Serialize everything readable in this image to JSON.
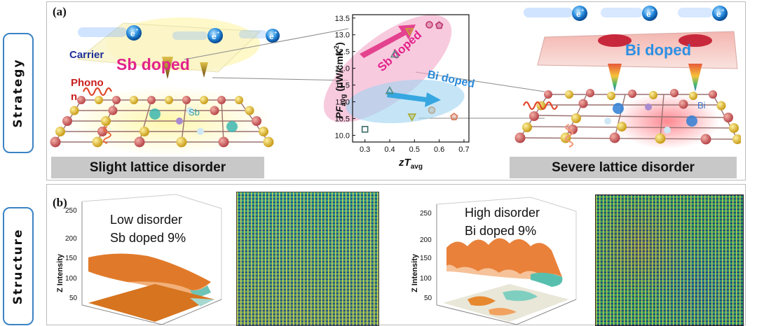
{
  "side_tabs": {
    "strategy": "Strategy",
    "structure": "Structure"
  },
  "panel_a": {
    "label": "(a)",
    "left": {
      "carrier": "Carrier",
      "dopant_title": "Sb doped",
      "phonon_line1": "Phono",
      "phonon_line2": "n",
      "atom_label": "Sb",
      "electron": "e",
      "electron_sup": "+",
      "banner": "Slight lattice disorder"
    },
    "right": {
      "dopant_title": "Bi doped",
      "atom_label": "Bi",
      "electron": "e",
      "electron_sup": "+",
      "banner": "Severe lattice disorder"
    }
  },
  "chart_data": {
    "type": "scatter",
    "ylabel_main": "PF",
    "ylabel_sub": "avg",
    "ylabel_unit": "(μW/cmK",
    "ylabel_unit_sup": "2",
    "ylabel_close": ")",
    "xlabel_main": "zT",
    "xlabel_sub": "avg",
    "xlim": [
      0.25,
      0.72
    ],
    "ylim": [
      9.8,
      13.6
    ],
    "xticks": [
      "0.3",
      "0.4",
      "0.5",
      "0.6",
      "0.7"
    ],
    "yticks": [
      "10.0",
      "10.5",
      "11.0",
      "11.5",
      "12.0",
      "12.5",
      "13.0",
      "13.5"
    ],
    "annotations": [
      {
        "text": "Sb doped"
      },
      {
        "text": "Bi doped"
      }
    ],
    "points": [
      {
        "x": 0.3,
        "y": 10.18,
        "marker": "square",
        "color": "#3d6b66"
      },
      {
        "x": 0.4,
        "y": 11.33,
        "marker": "triangle",
        "color": "#4f8c85"
      },
      {
        "x": 0.42,
        "y": 12.42,
        "marker": "triangle",
        "color": "#5f8e89"
      },
      {
        "x": 0.48,
        "y": 13.1,
        "marker": "triangle-down",
        "color": "#c9a23a"
      },
      {
        "x": 0.49,
        "y": 10.55,
        "marker": "triangle-down",
        "color": "#a9aa2a"
      },
      {
        "x": 0.56,
        "y": 13.3,
        "marker": "circle",
        "color": "#c0386e"
      },
      {
        "x": 0.57,
        "y": 10.75,
        "marker": "circle",
        "color": "#b7a58c"
      },
      {
        "x": 0.6,
        "y": 13.28,
        "marker": "pentagon",
        "color": "#b6306a"
      },
      {
        "x": 0.66,
        "y": 10.55,
        "marker": "pentagon",
        "color": "#d4734f"
      }
    ]
  },
  "panel_b": {
    "label": "(b)",
    "left": {
      "line1": "Low disorder",
      "line2": "Sb doped 9%"
    },
    "right": {
      "line1": "High disorder",
      "line2": "Bi doped 9%"
    },
    "zlabel": "Z Intensity",
    "zticks": [
      "250",
      "200",
      "150",
      "100",
      "50"
    ]
  }
}
